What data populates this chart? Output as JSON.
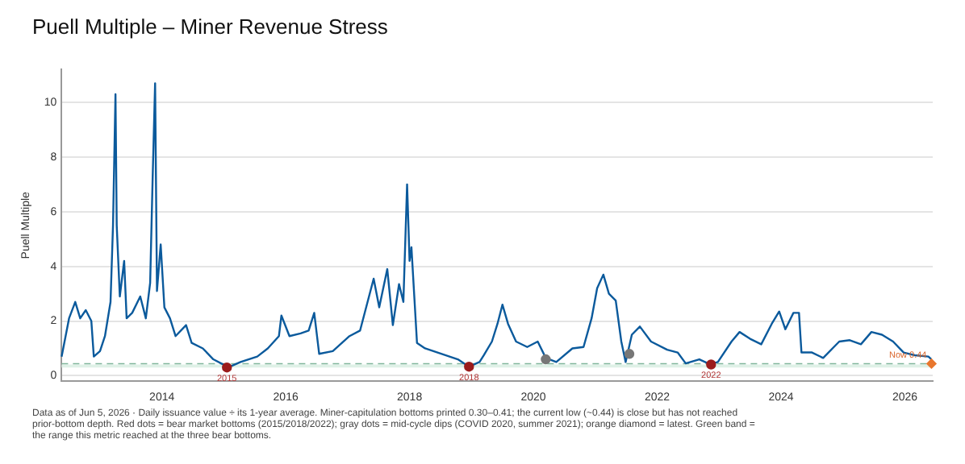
{
  "chart_data": {
    "type": "line",
    "title": "Puell Multiple – Miner Revenue Stress",
    "ylabel": "Puell Multiple",
    "xlim": [
      2012.38,
      2026.45
    ],
    "xticks": [
      2014,
      2016,
      2018,
      2020,
      2022,
      2024,
      2026
    ],
    "ylim": [
      -0.2,
      11.2
    ],
    "yticks": [
      0,
      2,
      4,
      6,
      8,
      10
    ],
    "grid": "y",
    "legend": false,
    "series": [
      {
        "color": "#0b5a9c",
        "marker": "none",
        "x": [
          2012.38,
          2012.5,
          2012.6,
          2012.68,
          2012.77,
          2012.86,
          2012.9,
          2013.0,
          2013.08,
          2013.17,
          2013.21,
          2013.25,
          2013.27,
          2013.32,
          2013.39,
          2013.43,
          2013.52,
          2013.65,
          2013.74,
          2013.81,
          2013.85,
          2013.89,
          2013.92,
          2013.98,
          2014.04,
          2014.13,
          2014.22,
          2014.39,
          2014.48,
          2014.66,
          2014.83,
          2015.0,
          2015.1,
          2015.27,
          2015.54,
          2015.71,
          2015.89,
          2015.93,
          2016.06,
          2016.24,
          2016.37,
          2016.46,
          2016.54,
          2016.76,
          2017.03,
          2017.2,
          2017.42,
          2017.51,
          2017.64,
          2017.73,
          2017.83,
          2017.9,
          2017.96,
          2018.0,
          2018.03,
          2018.12,
          2018.25,
          2018.52,
          2018.78,
          2018.96,
          2019.13,
          2019.2,
          2019.33,
          2019.42,
          2019.5,
          2019.59,
          2019.72,
          2019.9,
          2020.07,
          2020.2,
          2020.37,
          2020.63,
          2020.81,
          2020.94,
          2021.03,
          2021.13,
          2021.22,
          2021.33,
          2021.42,
          2021.49,
          2021.59,
          2021.72,
          2021.9,
          2022.16,
          2022.33,
          2022.46,
          2022.68,
          2022.85,
          2022.98,
          2023.2,
          2023.33,
          2023.5,
          2023.68,
          2023.85,
          2023.97,
          2024.07,
          2024.2,
          2024.29,
          2024.33,
          2024.5,
          2024.68,
          2024.94,
          2025.11,
          2025.29,
          2025.46,
          2025.63,
          2025.81,
          2025.98,
          2026.16,
          2026.38,
          2026.43
        ],
        "values": [
          0.7,
          2.1,
          2.7,
          2.1,
          2.4,
          2.0,
          0.7,
          0.9,
          1.45,
          2.7,
          5.5,
          10.3,
          5.5,
          2.9,
          4.2,
          2.1,
          2.3,
          2.9,
          2.1,
          3.4,
          7.2,
          10.7,
          3.1,
          4.8,
          2.5,
          2.1,
          1.45,
          1.85,
          1.2,
          1.0,
          0.6,
          0.4,
          0.33,
          0.5,
          0.7,
          1.0,
          1.45,
          2.2,
          1.45,
          1.55,
          1.65,
          2.3,
          0.8,
          0.9,
          1.45,
          1.65,
          3.55,
          2.5,
          3.9,
          1.85,
          3.35,
          2.7,
          7.0,
          4.2,
          4.7,
          1.2,
          1.0,
          0.8,
          0.6,
          0.33,
          0.5,
          0.75,
          1.25,
          1.9,
          2.6,
          1.9,
          1.25,
          1.05,
          1.25,
          0.65,
          0.5,
          1.0,
          1.05,
          2.1,
          3.2,
          3.7,
          3.0,
          2.75,
          1.25,
          0.5,
          1.5,
          1.8,
          1.25,
          0.95,
          0.85,
          0.45,
          0.6,
          0.42,
          0.5,
          1.25,
          1.6,
          1.35,
          1.15,
          1.9,
          2.35,
          1.7,
          2.3,
          2.3,
          0.85,
          0.85,
          0.65,
          1.25,
          1.3,
          1.15,
          1.6,
          1.5,
          1.25,
          0.85,
          0.75,
          0.7,
          0.6
        ]
      },
      {
        "type": "scatter",
        "color": "#9b1c1c",
        "marker": "circle",
        "x": [
          2015.05,
          2018.96,
          2022.87
        ],
        "values": [
          0.3,
          0.33,
          0.41
        ]
      },
      {
        "type": "scatter",
        "color": "#777777",
        "marker": "circle",
        "x": [
          2020.2,
          2021.55
        ],
        "values": [
          0.6,
          0.8
        ]
      },
      {
        "type": "scatter",
        "color": "#e8772e",
        "marker": "diamond",
        "x": [
          2026.43
        ],
        "values": [
          0.44
        ]
      }
    ],
    "ref_lines": [
      {
        "axis": "y",
        "value": 0.44,
        "color": "#7fb59a",
        "line_style": "dashed"
      }
    ],
    "bands": [
      {
        "axis": "y",
        "from": 0.3,
        "to": 0.41,
        "color": "#dff1e7"
      }
    ],
    "annotations": [
      {
        "text": "2015",
        "x": 2015.05,
        "y": 0.3
      },
      {
        "text": "2018",
        "x": 2018.96,
        "y": 0.33
      },
      {
        "text": "2022",
        "x": 2022.87,
        "y": 0.41
      },
      {
        "text": "Now 0.44",
        "x": 2026.43,
        "y": 0.44
      },
      "Data as of Jun 5, 2026 · Daily issuance value ÷ its 1-year average. Miner-capitulation bottoms printed 0.30–0.41; the current low (~0.44) is close but has not reached prior-bottom depth. Red dots = bear market bottoms (2015/2018/2022); gray dots = mid-cycle dips (COVID 2020, summer 2021); orange diamond = latest. Green band = the range this metric reached at the three bear bottoms."
    ]
  }
}
